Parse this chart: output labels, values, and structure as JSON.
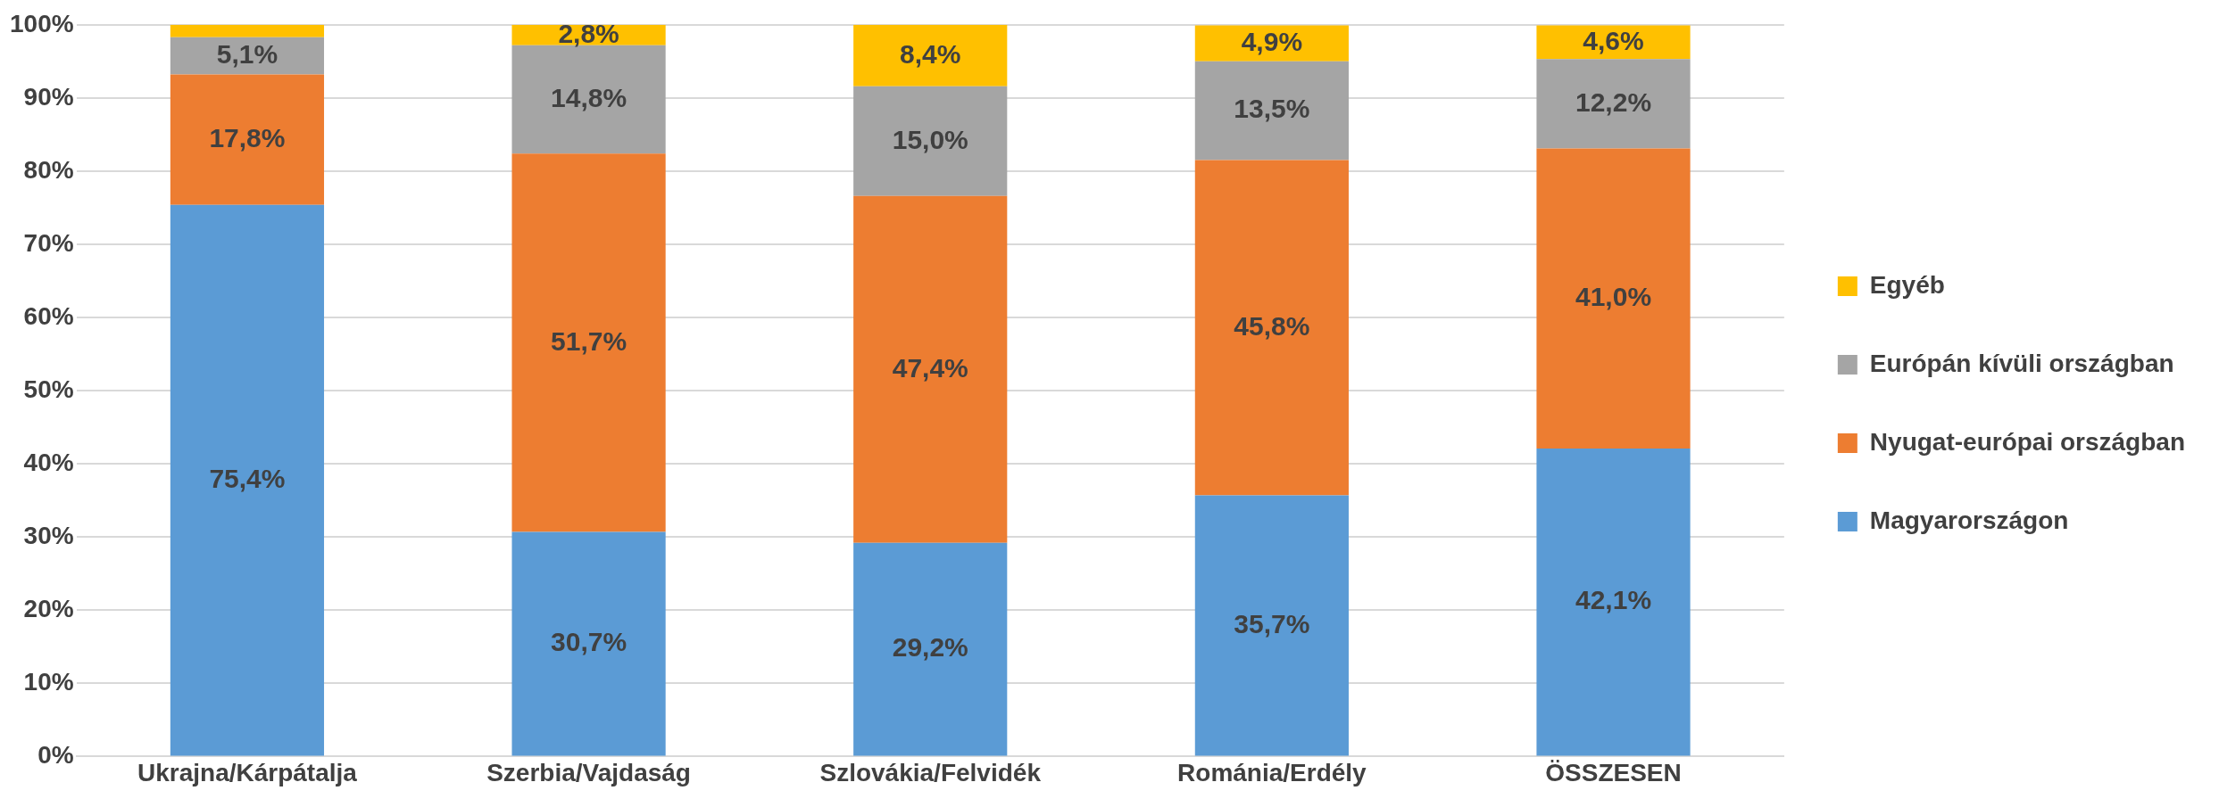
{
  "chart_data": {
    "type": "bar",
    "stacked": true,
    "categories": [
      "Ukrajna/Kárpátalja",
      "Szerbia/Vajdaság",
      "Szlovákia/Felvidék",
      "Románia/Erdély",
      "ÖSSZESEN"
    ],
    "series": [
      {
        "name": "Magyarországon",
        "color": "#5b9bd5",
        "values": [
          75.4,
          30.7,
          29.2,
          35.7,
          42.1
        ],
        "value_labels": [
          "75,4%",
          "30,7%",
          "29,2%",
          "35,7%",
          "42,1%"
        ]
      },
      {
        "name": "Nyugat-európai országban",
        "color": "#ed7d31",
        "values": [
          17.8,
          51.7,
          47.4,
          45.8,
          41.0
        ],
        "value_labels": [
          "17,8%",
          "51,7%",
          "47,4%",
          "45,8%",
          "41,0%"
        ]
      },
      {
        "name": "Európán kívüli országban",
        "color": "#a5a5a5",
        "values": [
          5.1,
          14.8,
          15.0,
          13.5,
          12.2
        ],
        "value_labels": [
          "5,1%",
          "14,8%",
          "15,0%",
          "13,5%",
          "12,2%"
        ]
      },
      {
        "name": "Egyéb",
        "color": "#ffc000",
        "values": [
          1.7,
          2.8,
          8.4,
          4.9,
          4.6
        ],
        "value_labels": [
          null,
          "2,8%",
          "8,4%",
          "4,9%",
          "4,6%"
        ]
      }
    ],
    "ylim": [
      0,
      100
    ],
    "yticks": [
      {
        "value": 0,
        "label": "0%"
      },
      {
        "value": 10,
        "label": "10%"
      },
      {
        "value": 20,
        "label": "20%"
      },
      {
        "value": 30,
        "label": "30%"
      },
      {
        "value": 40,
        "label": "40%"
      },
      {
        "value": 50,
        "label": "50%"
      },
      {
        "value": 60,
        "label": "60%"
      },
      {
        "value": 70,
        "label": "70%"
      },
      {
        "value": 80,
        "label": "80%"
      },
      {
        "value": 90,
        "label": "90%"
      },
      {
        "value": 100,
        "label": "100%"
      }
    ],
    "grid": "y",
    "legend": "right"
  }
}
